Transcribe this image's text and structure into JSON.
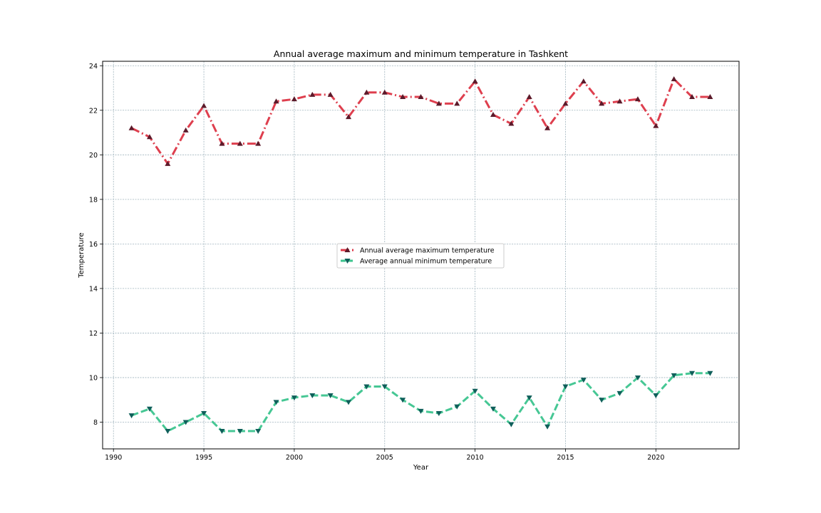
{
  "chart_data": {
    "type": "line",
    "title": "Annual average maximum and minimum temperature in Tashkent",
    "xlabel": "Year",
    "ylabel": "Temperature",
    "xlim": [
      1989.4,
      2024.6
    ],
    "ylim": [
      6.8,
      24.2
    ],
    "xticks": [
      1990,
      1995,
      2000,
      2005,
      2010,
      2015,
      2020
    ],
    "yticks": [
      8,
      10,
      12,
      14,
      16,
      18,
      20,
      22,
      24
    ],
    "grid": true,
    "legend_position": "center",
    "x": [
      1991,
      1992,
      1993,
      1994,
      1995,
      1996,
      1997,
      1998,
      1999,
      2000,
      2001,
      2002,
      2003,
      2004,
      2005,
      2006,
      2007,
      2008,
      2009,
      2010,
      2011,
      2012,
      2013,
      2014,
      2015,
      2016,
      2017,
      2018,
      2019,
      2020,
      2021,
      2022,
      2023
    ],
    "series": [
      {
        "name": "Annual average maximum temperature",
        "color": "#dc3545",
        "marker_color": "#5c1a2a",
        "marker": "triangle-up",
        "linestyle": "dashdot",
        "values": [
          21.2,
          20.8,
          19.6,
          21.1,
          22.2,
          20.5,
          20.5,
          20.5,
          22.4,
          22.5,
          22.7,
          22.7,
          21.7,
          22.8,
          22.8,
          22.6,
          22.6,
          22.3,
          22.3,
          23.3,
          21.8,
          21.4,
          22.6,
          21.2,
          22.3,
          23.3,
          22.3,
          22.4,
          22.5,
          21.3,
          23.4,
          22.6,
          22.6
        ]
      },
      {
        "name": "Average annual minimum temperature",
        "color": "#3cc48e",
        "marker_color": "#0f5f5a",
        "marker": "triangle-down",
        "linestyle": "dashed",
        "values": [
          8.3,
          8.6,
          7.6,
          8.0,
          8.4,
          7.6,
          7.6,
          7.6,
          8.9,
          9.1,
          9.2,
          9.2,
          8.9,
          9.6,
          9.6,
          9.0,
          8.5,
          8.4,
          8.7,
          9.4,
          8.6,
          7.9,
          9.1,
          7.8,
          9.6,
          9.9,
          9.0,
          9.3,
          10.0,
          9.2,
          10.1,
          10.2,
          10.2
        ]
      }
    ]
  }
}
